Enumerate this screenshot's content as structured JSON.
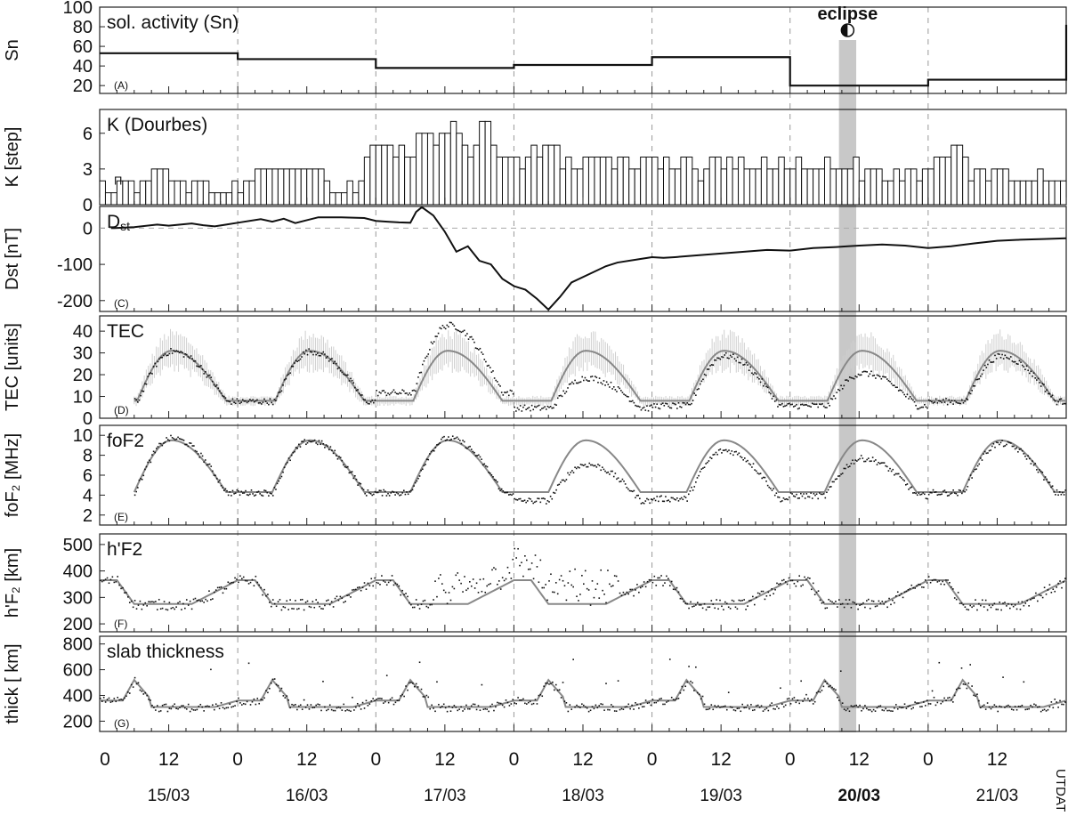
{
  "chart_data": {
    "type": "line",
    "eclipse_label": "eclipse",
    "x_axis": {
      "unit_label": "UT",
      "date_label": "DATE",
      "ticks": [
        {
          "hour": 0,
          "label": "0"
        },
        {
          "hour": 12,
          "label": "12"
        },
        {
          "hour": 24,
          "label": "0"
        },
        {
          "hour": 36,
          "label": "12"
        },
        {
          "hour": 48,
          "label": "0"
        },
        {
          "hour": 60,
          "label": "12"
        },
        {
          "hour": 72,
          "label": "0"
        },
        {
          "hour": 84,
          "label": "12"
        },
        {
          "hour": 96,
          "label": "0"
        },
        {
          "hour": 108,
          "label": "12"
        },
        {
          "hour": 120,
          "label": "0"
        },
        {
          "hour": 132,
          "label": "12"
        },
        {
          "hour": 144,
          "label": "0"
        },
        {
          "hour": 156,
          "label": "12"
        }
      ],
      "dates": [
        {
          "label": "15/03",
          "bold": false
        },
        {
          "label": "16/03",
          "bold": false
        },
        {
          "label": "17/03",
          "bold": false
        },
        {
          "label": "18/03",
          "bold": false
        },
        {
          "label": "19/03",
          "bold": false
        },
        {
          "label": "20/03",
          "bold": true
        },
        {
          "label": "21/03",
          "bold": false
        }
      ],
      "range_hours": [
        0,
        168
      ],
      "eclipse_hours": [
        128.5,
        131.5
      ]
    },
    "panels": [
      {
        "id": "A",
        "tag": "(A)",
        "title": "sol. activity (Sn)",
        "ylabel": "Sn",
        "ylim": [
          12,
          100
        ],
        "ticks": [
          20,
          40,
          60,
          80,
          100
        ],
        "kind": "step",
        "daily_values": [
          53,
          47,
          38,
          41,
          49,
          20,
          26
        ],
        "end_value": 82
      },
      {
        "id": "B",
        "tag": "(B)",
        "title": "K (Dourbes)",
        "ylabel": "K [step]",
        "ylim": [
          0,
          8
        ],
        "ticks": [
          0,
          3,
          6
        ],
        "kind": "kbars",
        "k_values": [
          2,
          1,
          1,
          2,
          2,
          2,
          1,
          2,
          2,
          3,
          3,
          3,
          2,
          2,
          2,
          1,
          2,
          2,
          2,
          1,
          1,
          1,
          1,
          2,
          1,
          2,
          2,
          3,
          3,
          3,
          3,
          3,
          3,
          3,
          3,
          3,
          3,
          3,
          3,
          2,
          1,
          1,
          1,
          2,
          1,
          2,
          4,
          5,
          5,
          5,
          5,
          4,
          5,
          4,
          4,
          6,
          6,
          6,
          5,
          6,
          6,
          7,
          6,
          5,
          4,
          5,
          7,
          7,
          5,
          4,
          4,
          4,
          4,
          3,
          4,
          5,
          4,
          5,
          5,
          5,
          3,
          4,
          3,
          3,
          4,
          4,
          4,
          4,
          4,
          3,
          4,
          4,
          3,
          3,
          4,
          4,
          4,
          3,
          4,
          3,
          3,
          4,
          4,
          3,
          2,
          3,
          4,
          4,
          3,
          4,
          3,
          4,
          3,
          3,
          3,
          4,
          3,
          3,
          4,
          3,
          3,
          4,
          3,
          3,
          3,
          3,
          4,
          3,
          3,
          3,
          3,
          4,
          2,
          3,
          3,
          3,
          2,
          2,
          3,
          2,
          3,
          3,
          2,
          3,
          3,
          4,
          4,
          4,
          5,
          5,
          4,
          2,
          3,
          3,
          2,
          3,
          3,
          3,
          2,
          2,
          2,
          2,
          2,
          3,
          2,
          2,
          2,
          2
        ],
        "marker_label": "Π"
      },
      {
        "id": "C",
        "tag": "(C)",
        "title": "D",
        "title_sub": "st",
        "ylabel": "Dst [nT]",
        "ylim": [
          -230,
          60
        ],
        "ticks": [
          -200,
          -100,
          0
        ],
        "kind": "line",
        "hours": [
          2,
          6,
          10,
          12,
          14,
          16,
          18,
          20,
          22,
          24,
          28,
          30,
          32,
          34,
          36,
          38,
          42,
          46,
          48,
          50,
          52,
          54,
          55,
          56,
          58,
          60,
          62,
          64,
          66,
          68,
          70,
          72,
          74,
          76,
          78,
          80,
          82,
          86,
          88,
          90,
          94,
          96,
          98,
          100,
          104,
          108,
          112,
          116,
          120,
          124,
          128,
          130,
          132,
          136,
          140,
          144,
          148,
          152,
          156,
          160,
          164,
          168
        ],
        "values": [
          0,
          3,
          10,
          7,
          10,
          13,
          8,
          5,
          10,
          15,
          25,
          18,
          26,
          14,
          22,
          30,
          30,
          28,
          20,
          18,
          16,
          15,
          45,
          58,
          35,
          -10,
          -65,
          -50,
          -90,
          -100,
          -140,
          -160,
          -170,
          -195,
          -225,
          -190,
          -150,
          -120,
          -105,
          -95,
          -85,
          -80,
          -82,
          -80,
          -75,
          -70,
          -65,
          -60,
          -62,
          -55,
          -52,
          -50,
          -48,
          -45,
          -48,
          -55,
          -50,
          -42,
          -35,
          -32,
          -30,
          -28
        ]
      },
      {
        "id": "D",
        "tag": "(D)",
        "title": "TEC",
        "ylabel": "TEC [units]",
        "ylim": [
          0,
          47
        ],
        "ticks": [
          0,
          10,
          20,
          30,
          40
        ],
        "kind": "diurnal",
        "median": {
          "night": 8,
          "peak": 31,
          "rise": [
            6.5,
            12.5
          ],
          "fall": [
            12.5,
            22
          ]
        },
        "observed_day_factor": [
          1.0,
          1.0,
          1.35,
          0.6,
          1.0,
          0.65,
          0.9
        ],
        "observed_day_offset": [
          0,
          0,
          4,
          -3,
          -2,
          -2,
          0
        ]
      },
      {
        "id": "E",
        "tag": "(E)",
        "title": "foF2",
        "ylabel": "foF₂ [MHz]",
        "ylim": [
          1,
          11
        ],
        "ticks": [
          2,
          4,
          6,
          8,
          10
        ],
        "kind": "diurnal",
        "median": {
          "night": 4.3,
          "peak": 9.5,
          "rise": [
            6,
            12.5
          ],
          "fall": [
            12.5,
            22
          ]
        },
        "observed_day_factor": [
          1.05,
          1.0,
          1.05,
          0.7,
          0.93,
          0.72,
          0.95
        ],
        "observed_day_offset": [
          0,
          0,
          0,
          -0.8,
          -0.6,
          -0.3,
          0
        ]
      },
      {
        "id": "F",
        "tag": "(F)",
        "title": "h'F2",
        "ylabel": "h'F₂ [km]",
        "ylim": [
          170,
          540
        ],
        "ticks": [
          200,
          300,
          400,
          500
        ],
        "kind": "hprofile",
        "median": {
          "night": 365,
          "day": 275
        }
      },
      {
        "id": "G",
        "tag": "(G)",
        "title": "slab thickness",
        "ylabel": "thick [ km]",
        "ylim": [
          120,
          860
        ],
        "ticks": [
          200,
          400,
          600,
          800
        ],
        "kind": "slab",
        "median": {
          "base": 300,
          "peak": 520
        }
      }
    ]
  }
}
